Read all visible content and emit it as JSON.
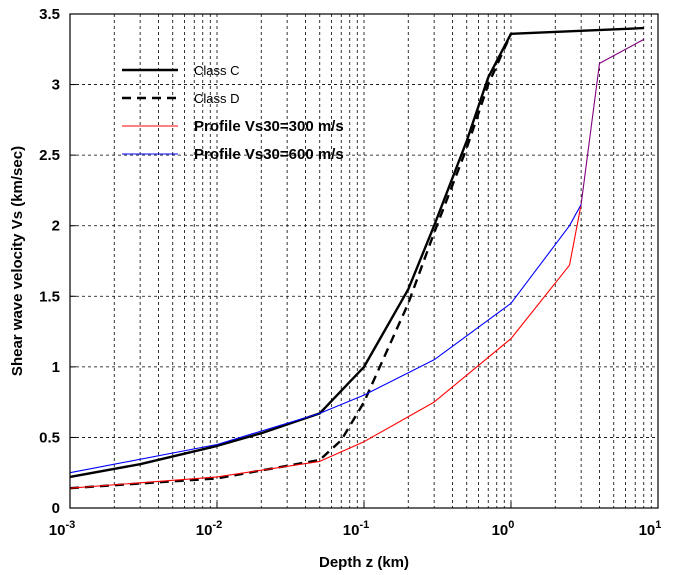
{
  "chart_data": {
    "type": "line",
    "x_scale": "log",
    "xlim": [
      0.001,
      10
    ],
    "ylim": [
      0,
      3.5
    ],
    "grid": true,
    "legend_position": "top-left",
    "xlabel": "Depth z (km)",
    "ylabel": "Shear wave velocity Vs (km/sec)",
    "x_ticks": [
      {
        "base": "10",
        "exp": "-3",
        "value": 0.001
      },
      {
        "base": "10",
        "exp": "-2",
        "value": 0.01
      },
      {
        "base": "10",
        "exp": "-1",
        "value": 0.1
      },
      {
        "base": "10",
        "exp": "0",
        "value": 1
      },
      {
        "base": "10",
        "exp": "1",
        "value": 10
      }
    ],
    "y_ticks": [
      "0",
      "0.5",
      "1",
      "1.5",
      "2",
      "2.5",
      "3",
      "3.5"
    ],
    "y_tick_values": [
      0,
      0.5,
      1,
      1.5,
      2,
      2.5,
      3,
      3.5
    ],
    "series": [
      {
        "name": "Class  C",
        "color": "#000000",
        "style": "solid",
        "x": [
          0.001,
          0.003,
          0.01,
          0.02,
          0.05,
          0.1,
          0.2,
          0.3,
          0.5,
          0.7,
          1.0,
          8.0
        ],
        "y": [
          0.22,
          0.31,
          0.44,
          0.53,
          0.67,
          1.0,
          1.55,
          2.0,
          2.6,
          3.05,
          3.36,
          3.4
        ]
      },
      {
        "name": "Class  D",
        "color": "#000000",
        "style": "dashed",
        "x": [
          0.001,
          0.01,
          0.05,
          0.07,
          0.1,
          0.2,
          0.3,
          0.5,
          0.7,
          1.0
        ],
        "y": [
          0.14,
          0.21,
          0.34,
          0.48,
          0.75,
          1.45,
          1.95,
          2.55,
          3.0,
          3.36
        ]
      },
      {
        "name": "Profile Vs30=300 m/s",
        "color": "#ff0000",
        "style": "solid",
        "x": [
          0.001,
          0.01,
          0.05,
          0.1,
          0.3,
          1.0,
          2.5,
          3.0
        ],
        "y": [
          0.14,
          0.22,
          0.33,
          0.47,
          0.75,
          1.2,
          1.72,
          2.15
        ]
      },
      {
        "name": "Profile Vs30=600 m/s",
        "color": "#0000ff",
        "style": "solid",
        "x": [
          0.001,
          0.01,
          0.05,
          0.1,
          0.3,
          1.0,
          2.5,
          3.0
        ],
        "y": [
          0.25,
          0.45,
          0.67,
          0.8,
          1.05,
          1.45,
          2.0,
          2.15
        ]
      },
      {
        "name": "",
        "color": "#800080",
        "style": "solid",
        "x": [
          3.0,
          4.0,
          8.0
        ],
        "y": [
          2.15,
          3.15,
          3.32
        ]
      }
    ]
  }
}
